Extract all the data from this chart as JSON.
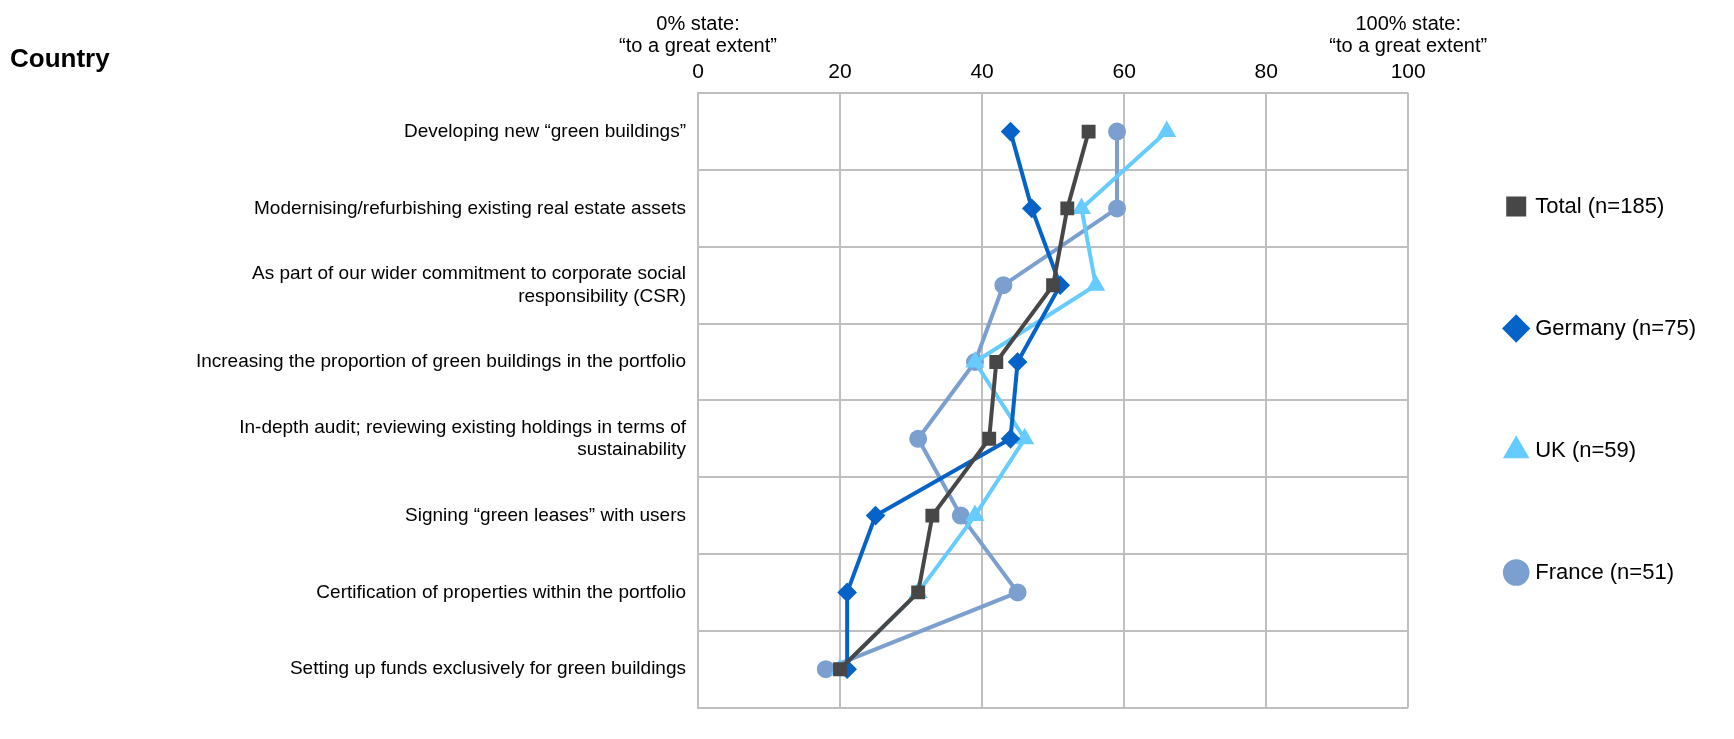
{
  "chart_data": {
    "type": "line",
    "orientation": "horizontal",
    "title": "Country",
    "annotations": [
      "0% state: “to a great extent”",
      "100% state: “to a great extent”"
    ],
    "categories": [
      "Developing new “green buildings”",
      "Modernising/refurbishing existing real estate assets",
      "As part of our wider commitment to corporate social responsibility (CSR)",
      "Increasing the proportion of green buildings in the portfolio",
      "In-depth audit; reviewing existing holdings in terms of sustainability",
      "Signing “green leases” with users",
      "Certification of properties within the portfolio",
      "Setting up funds exclusively for green buildings"
    ],
    "series": [
      {
        "name": "Total (n=185)",
        "color": "#474747",
        "marker": "square",
        "values": [
          55,
          52,
          50,
          42,
          41,
          33,
          31,
          20
        ]
      },
      {
        "name": "Germany (n=75)",
        "color": "#0563c8",
        "marker": "diamond",
        "values": [
          44,
          47,
          51,
          45,
          44,
          25,
          21,
          21
        ]
      },
      {
        "name": "UK (n=59)",
        "color": "#66ccff",
        "marker": "triangle",
        "values": [
          66,
          54,
          56,
          39,
          46,
          39,
          31,
          20
        ]
      },
      {
        "name": "France (n=51)",
        "color": "#7ba0d0",
        "marker": "circle",
        "values": [
          59,
          59,
          43,
          39,
          31,
          37,
          45,
          18
        ]
      }
    ],
    "xlim": [
      0,
      100
    ],
    "xticks": [
      0,
      20,
      40,
      60,
      80,
      100
    ],
    "grid": true,
    "legend": "right"
  }
}
